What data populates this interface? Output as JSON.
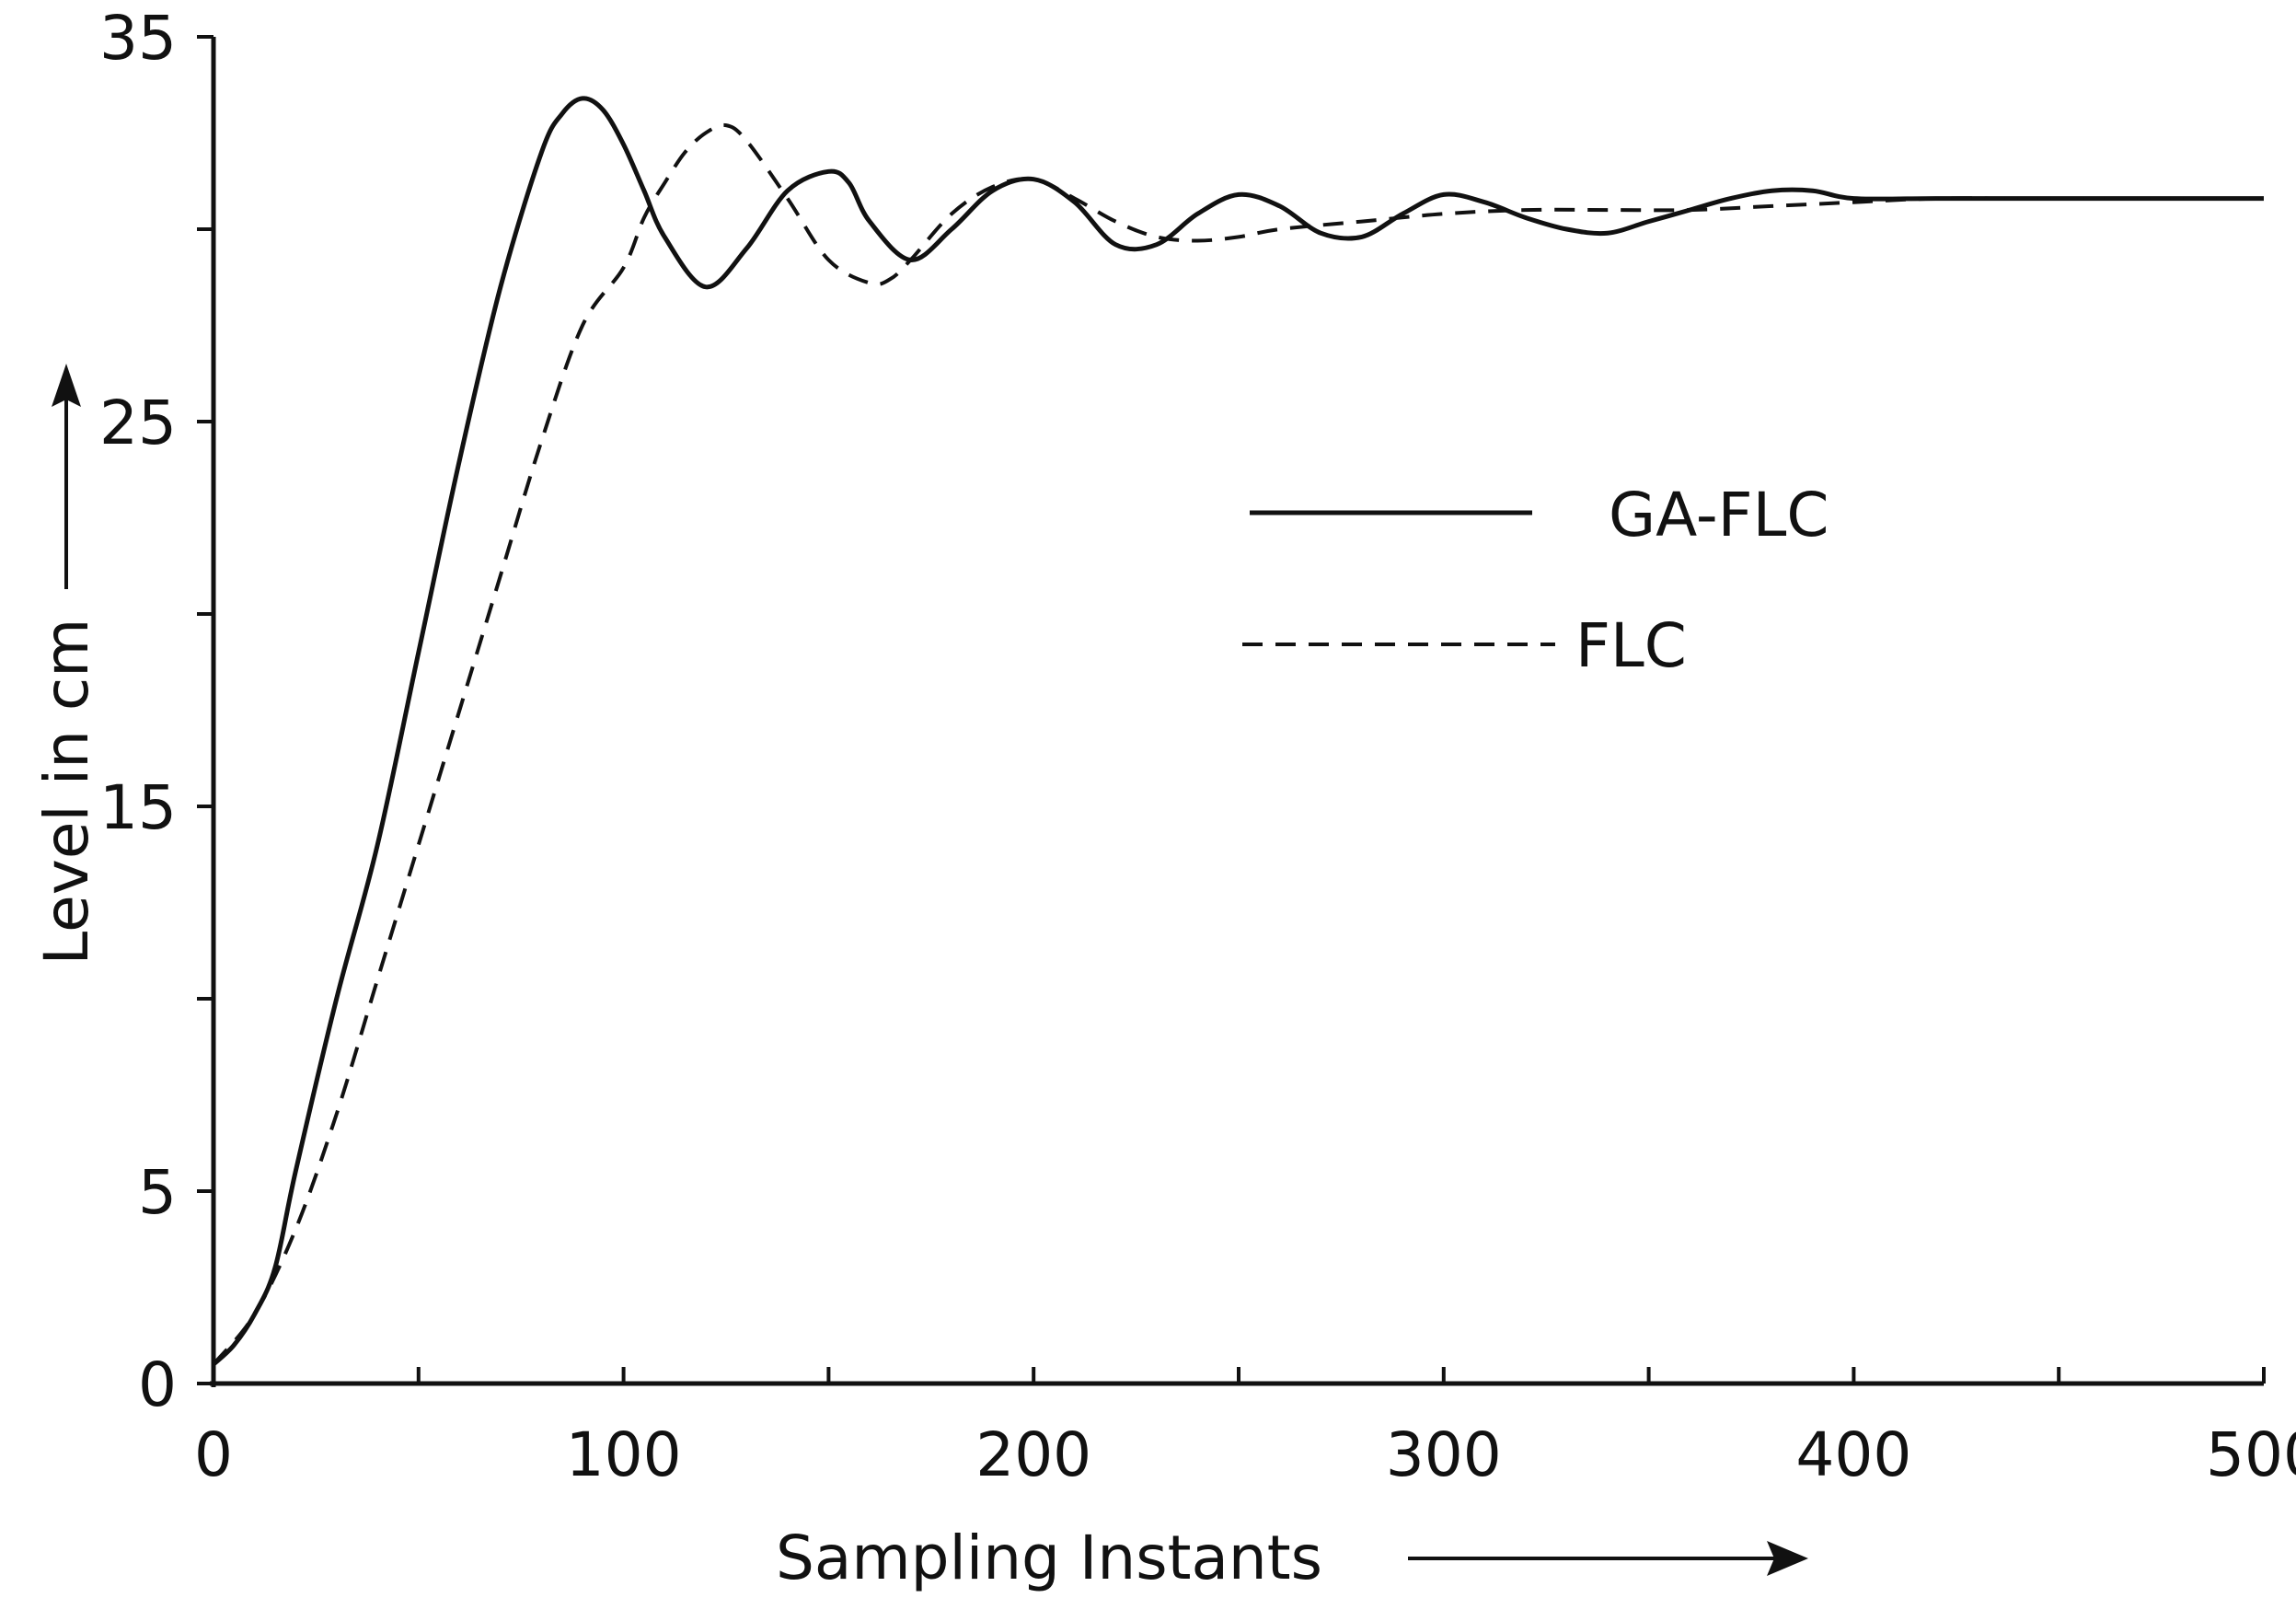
{
  "chart_data": {
    "type": "line",
    "title": "",
    "xlabel": "Sampling Instants",
    "ylabel": "Level in cm",
    "xlim": [
      0,
      500
    ],
    "ylim": [
      0,
      35
    ],
    "x_ticks": [
      0,
      100,
      200,
      300,
      400,
      500
    ],
    "x_tick_labels": [
      "0",
      "100",
      "200",
      "300",
      "400",
      "500"
    ],
    "y_ticks": [
      0,
      5,
      15,
      25,
      35
    ],
    "y_tick_labels": [
      "0",
      "5",
      "15",
      "25",
      "35"
    ],
    "grid": false,
    "legend_position": "center-right",
    "series": [
      {
        "name": "GA-FLC",
        "style": "solid",
        "color": "#111111",
        "x": [
          0,
          5,
          10,
          15,
          20,
          30,
          40,
          50,
          60,
          70,
          80,
          85,
          90,
          95,
          100,
          105,
          110,
          120,
          130,
          140,
          150,
          155,
          160,
          170,
          180,
          190,
          200,
          210,
          220,
          230,
          240,
          250,
          260,
          270,
          280,
          290,
          300,
          310,
          320,
          330,
          340,
          350,
          360,
          370,
          380,
          390,
          400,
          420,
          440,
          460,
          480,
          500
        ],
        "y": [
          0.5,
          1.0,
          1.8,
          3.0,
          5.5,
          10.0,
          14.0,
          19.0,
          24.0,
          28.5,
          32.0,
          33.0,
          33.4,
          33.1,
          32.2,
          31.0,
          29.8,
          28.5,
          29.5,
          31.0,
          31.5,
          31.2,
          30.2,
          29.2,
          30.0,
          31.0,
          31.3,
          30.7,
          29.6,
          29.6,
          30.4,
          30.9,
          30.6,
          29.9,
          29.8,
          30.4,
          30.9,
          30.7,
          30.3,
          30.0,
          29.9,
          30.2,
          30.5,
          30.8,
          31.0,
          31.0,
          30.8,
          30.8,
          30.8,
          30.8,
          30.8,
          30.8
        ]
      },
      {
        "name": "FLC",
        "style": "dashed",
        "color": "#111111",
        "x": [
          0,
          10,
          20,
          30,
          40,
          50,
          60,
          70,
          80,
          90,
          100,
          105,
          110,
          115,
          120,
          125,
          130,
          140,
          150,
          160,
          165,
          170,
          180,
          190,
          200,
          210,
          220,
          230,
          240,
          250,
          260,
          280,
          300,
          320,
          340,
          360,
          380,
          400,
          420,
          440,
          460,
          480,
          500
        ],
        "y": [
          0.5,
          1.8,
          4.0,
          7.0,
          10.5,
          14.0,
          17.5,
          21.0,
          24.5,
          27.5,
          29.0,
          30.3,
          31.2,
          32.0,
          32.5,
          32.7,
          32.3,
          30.8,
          29.2,
          28.6,
          28.7,
          29.2,
          30.4,
          31.1,
          31.3,
          30.8,
          30.2,
          29.8,
          29.7,
          29.8,
          30.0,
          30.2,
          30.4,
          30.5,
          30.5,
          30.5,
          30.6,
          30.7,
          30.8,
          30.8,
          30.8,
          30.8,
          30.8
        ]
      }
    ]
  }
}
